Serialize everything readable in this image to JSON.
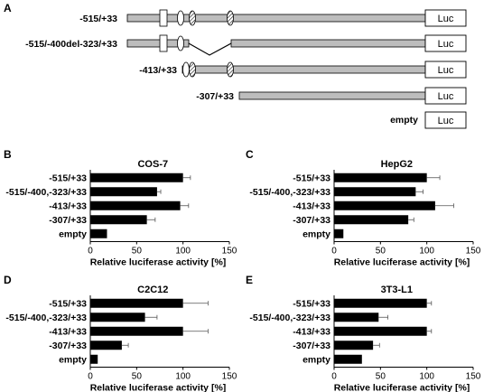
{
  "panel_a": {
    "panel_label": "A",
    "luc_label": "Luc",
    "constructs": [
      {
        "label": "-515/+33"
      },
      {
        "label": "-515/-400del-323/+33"
      },
      {
        "label": "-413/+33"
      },
      {
        "label": "-307/+33"
      },
      {
        "label": "empty"
      }
    ]
  },
  "colors": {
    "promoter_fill": "#bdbdbd",
    "bar_fill": "#000000",
    "axis": "#000000"
  },
  "chart_data": [
    {
      "panel_label": "B",
      "type": "bar",
      "orientation": "horizontal",
      "title": "COS-7",
      "xlabel": "Relative luciferase activity [%]",
      "xlim": [
        0,
        150
      ],
      "xticks": [
        0,
        50,
        100,
        150
      ],
      "categories": [
        "-515/+33",
        "-515/-400,-323/+33",
        "-413/+33",
        "-307/+33",
        "empty"
      ],
      "values": [
        100,
        72,
        97,
        61,
        18
      ],
      "errors": [
        8,
        4,
        9,
        9,
        0
      ]
    },
    {
      "panel_label": "C",
      "type": "bar",
      "orientation": "horizontal",
      "title": "HepG2",
      "xlabel": "Relative luciferase activity [%]",
      "xlim": [
        0,
        150
      ],
      "xticks": [
        0,
        50,
        100,
        150
      ],
      "categories": [
        "-515/+33",
        "-515/-400,-323/+33",
        "-413/+33",
        "-307/+33",
        "empty"
      ],
      "values": [
        100,
        88,
        109,
        80,
        10
      ],
      "errors": [
        14,
        8,
        20,
        6,
        0
      ]
    },
    {
      "panel_label": "D",
      "type": "bar",
      "orientation": "horizontal",
      "title": "C2C12",
      "xlabel": "Relative luciferase activity [%]",
      "xlim": [
        0,
        150
      ],
      "xticks": [
        0,
        50,
        100,
        150
      ],
      "categories": [
        "-515/+33",
        "-515/-400,-323/+33",
        "-413/+33",
        "-307/+33",
        "empty"
      ],
      "values": [
        100,
        59,
        100,
        34,
        8
      ],
      "errors": [
        27,
        13,
        27,
        7,
        0
      ]
    },
    {
      "panel_label": "E",
      "type": "bar",
      "orientation": "horizontal",
      "title": "3T3-L1",
      "xlabel": "Relative luciferase activity [%]",
      "xlim": [
        0,
        150
      ],
      "xticks": [
        0,
        50,
        100,
        150
      ],
      "categories": [
        "-515/+33",
        "-515/-400,-323/+33",
        "-413/+33",
        "-307/+33",
        "empty"
      ],
      "values": [
        100,
        48,
        100,
        42,
        30
      ],
      "errors": [
        5,
        10,
        5,
        7,
        0
      ]
    }
  ]
}
